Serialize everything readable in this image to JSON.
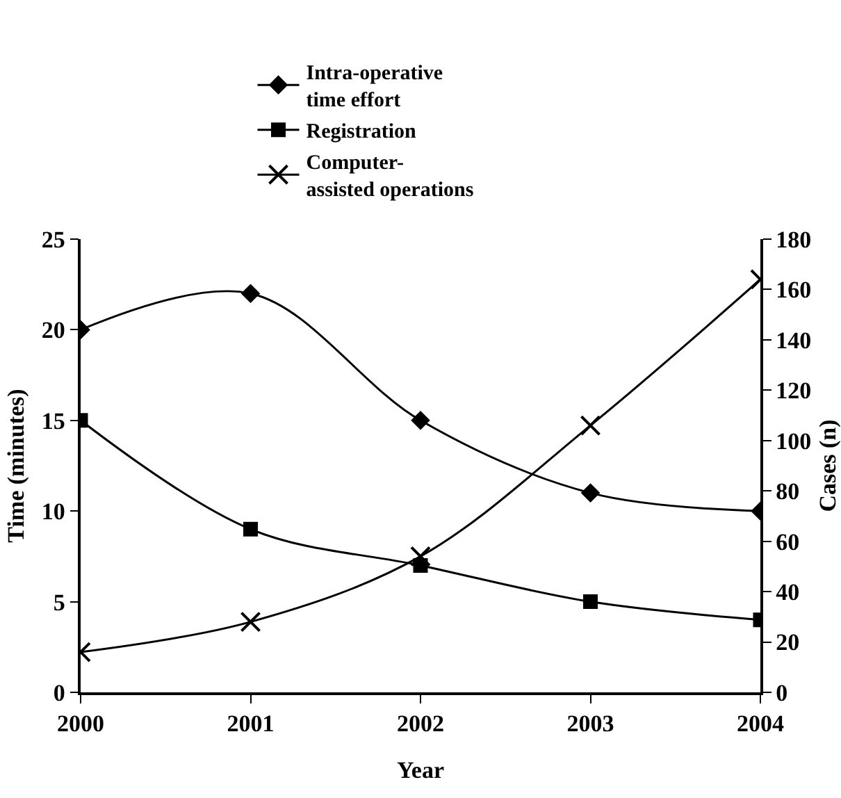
{
  "chart_data": {
    "type": "line",
    "xlabel": "Year",
    "ylabel": "Time (minutes)",
    "y2label": "Cases (n)",
    "x": [
      2000,
      2001,
      2002,
      2003,
      2004
    ],
    "xlim": [
      2000,
      2004
    ],
    "xticks": [
      2000,
      2001,
      2002,
      2003,
      2004
    ],
    "ylim": [
      0,
      25
    ],
    "yticks": [
      0,
      5,
      10,
      15,
      20,
      25
    ],
    "y2lim": [
      0,
      180
    ],
    "y2ticks": [
      0,
      20,
      40,
      60,
      80,
      100,
      120,
      140,
      160,
      180
    ],
    "grid": false,
    "legend": "top",
    "line_style": "solid",
    "series": [
      {
        "name": "Intra-operative\ntime effort",
        "color": "#000000",
        "marker": "diamond",
        "values": [
          20,
          22,
          15,
          11,
          10
        ]
      },
      {
        "name": "Registration",
        "color": "#000000",
        "marker": "square",
        "values": [
          15,
          9,
          7,
          5,
          4
        ]
      },
      {
        "name": "Computer-\nassisted operations",
        "color": "#000000",
        "marker": "cross",
        "axis": "y2",
        "values": [
          16,
          28,
          54,
          106,
          164
        ]
      }
    ]
  }
}
